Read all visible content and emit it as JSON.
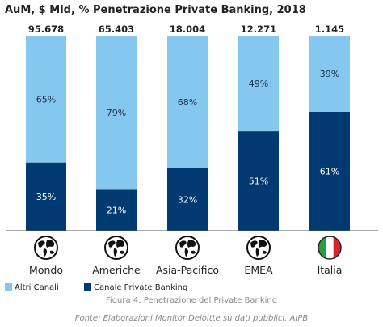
{
  "chart_data": {
    "type": "bar",
    "stacked": true,
    "normalized": true,
    "title": "AuM, $ Mld, % Penetrazione Private Banking, 2018",
    "categories": [
      "Mondo",
      "Americhe",
      "Asia-Pacifico",
      "EMEA",
      "Italia"
    ],
    "totals": [
      "95.678",
      "65.403",
      "18.004",
      "12.271",
      "1.145"
    ],
    "series": [
      {
        "name": "Canale Private Banking",
        "color": "#003a70",
        "values": [
          35,
          21,
          32,
          51,
          61
        ],
        "labels": [
          "35%",
          "21%",
          "32%",
          "51%",
          "61%"
        ]
      },
      {
        "name": "Altri Canali",
        "color": "#84c8f0",
        "values": [
          65,
          79,
          68,
          49,
          39
        ],
        "labels": [
          "65%",
          "79%",
          "68%",
          "49%",
          "39%"
        ]
      }
    ],
    "icons": [
      "globe-icon",
      "globe-icon",
      "globe-icon",
      "globe-icon",
      "italy-flag-icon"
    ],
    "legend": {
      "placement": "bottom-left",
      "order": [
        "Altri Canali",
        "Canale Private Banking"
      ]
    },
    "ylim": [
      0,
      100
    ],
    "grid": false
  },
  "caption": "Figura 4: Penetrazione del Private Banking",
  "source": "Fonte: Elaborazioni Monitor Deloitte su dati pubblici, AIPB"
}
